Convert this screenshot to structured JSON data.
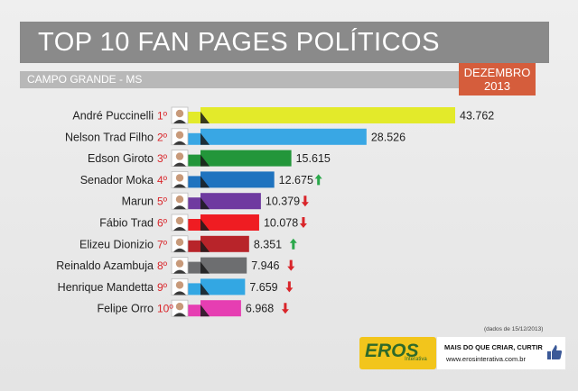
{
  "title": "TOP 10 FAN PAGES POLÍTICOS",
  "subtitle": "CAMPO GRANDE - MS",
  "month_badge": {
    "line1": "DEZEMBRO",
    "line2": "2013"
  },
  "source_note": "(dados de 15/12/2013)",
  "brand": {
    "logo": "EROS",
    "sub": "Interativa",
    "tagline": "MAIS DO QUE CRIAR, CURTIR",
    "url": "www.erosinterativa.com.br"
  },
  "colors": {
    "up": "#2aa84a",
    "down": "#d9252a",
    "rank": "#d9252a"
  },
  "chart_data": {
    "type": "bar",
    "orientation": "horizontal",
    "title": "TOP 10 FAN PAGES POLÍTICOS",
    "categories": [
      "André Puccinelli",
      "Nelson Trad Filho",
      "Edson Giroto",
      "Senador Moka",
      "Marun",
      "Fábio Trad",
      "Elizeu Dionizio",
      "Reinaldo Azambuja",
      "Henrique Mandetta",
      "Felipe Orro"
    ],
    "ranks": [
      "1º",
      "2º",
      "3º",
      "4º",
      "5º",
      "6º",
      "7º",
      "8º",
      "9º",
      "10º"
    ],
    "values": [
      43762,
      28526,
      15615,
      12675,
      10379,
      10078,
      8351,
      7946,
      7659,
      6968
    ],
    "value_labels": [
      "43.762",
      "28.526",
      "15.615",
      "12.675",
      "10.379",
      "10.078",
      "8.351",
      "7.946",
      "7.659",
      "6.968"
    ],
    "trend": [
      "",
      "",
      "",
      "up",
      "down",
      "down",
      "up",
      "down",
      "down",
      "down"
    ],
    "bar_colors": [
      "#e3ea2a",
      "#39a7e4",
      "#23963a",
      "#1f73bf",
      "#6f3aa0",
      "#ef1c22",
      "#b8242a",
      "#6d6e70",
      "#33a7e3",
      "#e63eb2"
    ],
    "xlim": [
      0,
      43762
    ]
  }
}
